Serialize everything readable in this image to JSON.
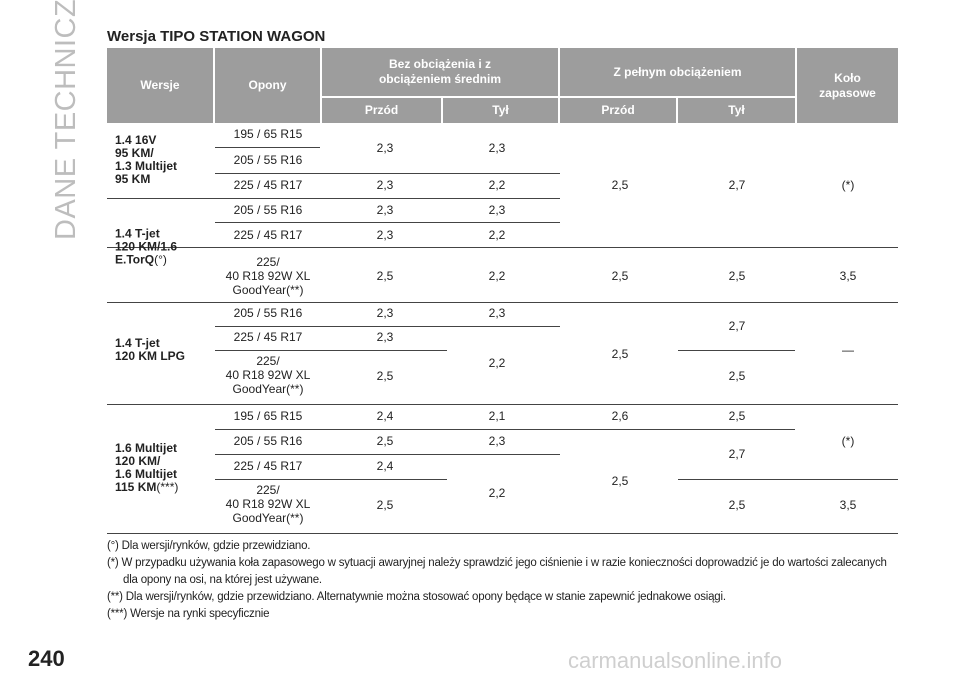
{
  "sidebar": "DANE TECHNICZNE",
  "title": "Wersja TIPO STATION WAGON",
  "table": {
    "header": {
      "versions": "Wersje",
      "tyres": "Opony",
      "no_load": "Bez obciążenia i z obciążeniem średnim",
      "full_load": "Z pełnym obciążeniem",
      "spare": "Koło zapasowe",
      "subheaders": [
        "Przód",
        "Tył",
        "Przód",
        "Tył"
      ]
    },
    "groups": [
      {
        "version": "1.4 16V\n95 KM/\n1.3 Multijet\n95 KM",
        "tyres": [
          "195 / 65 R15",
          "205 / 55 R16",
          "225 / 45 R17"
        ],
        "values": [
          "2,3",
          "2,3",
          "2,3",
          "2,2",
          "2,5",
          "2,7",
          "(*)"
        ]
      },
      {
        "version": "1.4 T-jet\n120 KM/1.6\nE.TorQ",
        "version_note": "(°)",
        "tyres": [
          "205 / 55 R16",
          "225 / 45 R17",
          {
            "text": "225/\n40 R18 92W XL\nGoodYear",
            "note": "(**)"
          }
        ],
        "values": [
          "2,3",
          "2,3",
          "2,3",
          "2,2",
          "2,5",
          "2,2",
          "2,5",
          "2,5",
          "3,5"
        ]
      },
      {
        "version": "1.4 T-jet\n120 KM LPG",
        "tyres": [
          "205 / 55 R16",
          "225 / 45 R17",
          {
            "text": "225/\n40 R18 92W XL\nGoodYear",
            "note": "(**)"
          }
        ],
        "values": [
          "2,3",
          "2,3",
          "2,3",
          "2,2",
          "2,5",
          "2,5",
          "2,7",
          "2,5",
          "—"
        ]
      },
      {
        "version": "1.6 Multijet\n120 KM/\n1.6 Multijet\n115 KM",
        "version_note": "(***)",
        "tyres": [
          "195 / 65 R15",
          "205 / 55 R16",
          "225 / 45 R17",
          {
            "text": "225/\n40 R18 92W XL\nGoodYear",
            "note": "(**)"
          }
        ],
        "values": [
          "2,4",
          "2,1",
          "2,6",
          "2,5",
          "(*)",
          "2,5",
          "2,3",
          "2,7",
          "2,4",
          "2,2",
          "2,5",
          "2,5",
          "2,5",
          "3,5"
        ]
      }
    ]
  },
  "notes": [
    "(°) Dla wersji/rynków, gdzie przewidziano.",
    "(*) W przypadku używania koła zapasowego w sytuacji awaryjnej należy sprawdzić jego ciśnienie i w razie konieczności doprowadzić je do wartości zalecanych dla opony na osi, na której jest używane.",
    "(**) Dla wersji/rynków, gdzie przewidziano. Alternatywnie można stosować opony będące w stanie zapewnić jednakowe osiągi.",
    "(***) Wersje na rynki specyficznie"
  ],
  "page_number": "240",
  "watermark": "carmanualsonline.info"
}
